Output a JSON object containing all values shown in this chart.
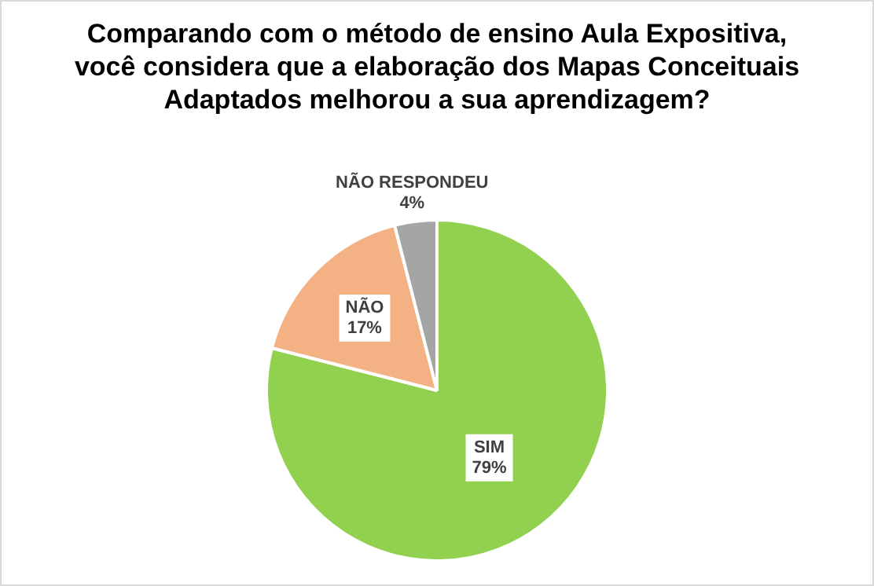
{
  "chart_data": {
    "type": "pie",
    "title": "Comparando com o método de ensino Aula Expositiva,\nvocê considera que a elaboração dos Mapas Conceituais\nAdaptados melhorou a sua aprendizagem?",
    "categories": [
      "SIM",
      "NÃO",
      "NÃO RESPONDEU"
    ],
    "values": [
      79,
      17,
      4
    ],
    "value_labels": [
      "79%",
      "17%",
      "4%"
    ],
    "colors": [
      "#92d050",
      "#f4b183",
      "#a5a5a5"
    ],
    "legend": false
  }
}
